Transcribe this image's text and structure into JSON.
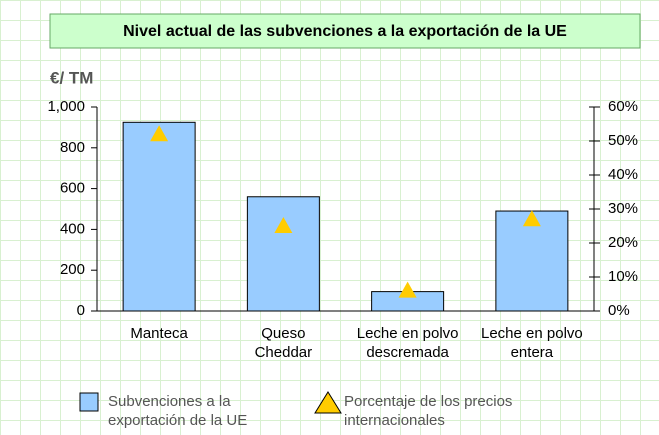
{
  "chart_data": {
    "type": "bar",
    "title": "Nivel actual de las subvenciones a la exportación de la UE",
    "y_label": "€/ TM",
    "categories": [
      "Manteca",
      "Queso\nCheddar",
      "Leche en polvo\ndescremada",
      "Leche en polvo\nentera"
    ],
    "series": [
      {
        "name": "Subvenciones a la\nexportación de la UE",
        "color": "#99ccff",
        "type": "bar",
        "values": [
          925,
          560,
          95,
          490
        ]
      },
      {
        "name": "Porcentaje de los precios\ninternacionales",
        "color": "#ffcc00",
        "type": "marker",
        "axis": "y2",
        "values": [
          52,
          25,
          6,
          27
        ]
      }
    ],
    "ylim": [
      0,
      1000
    ],
    "yticks": [
      0,
      200,
      400,
      600,
      800,
      {
        "value": 1000,
        "label": "1,000"
      }
    ],
    "y2lim": [
      0,
      60
    ],
    "y2ticks": [
      {
        "value": 0,
        "label": "0%"
      },
      {
        "value": 10,
        "label": "10%"
      },
      {
        "value": 20,
        "label": "20%"
      },
      {
        "value": 30,
        "label": "30%"
      },
      {
        "value": 40,
        "label": "40%"
      },
      {
        "value": 50,
        "label": "50%"
      },
      {
        "value": 60,
        "label": "60%"
      }
    ]
  }
}
